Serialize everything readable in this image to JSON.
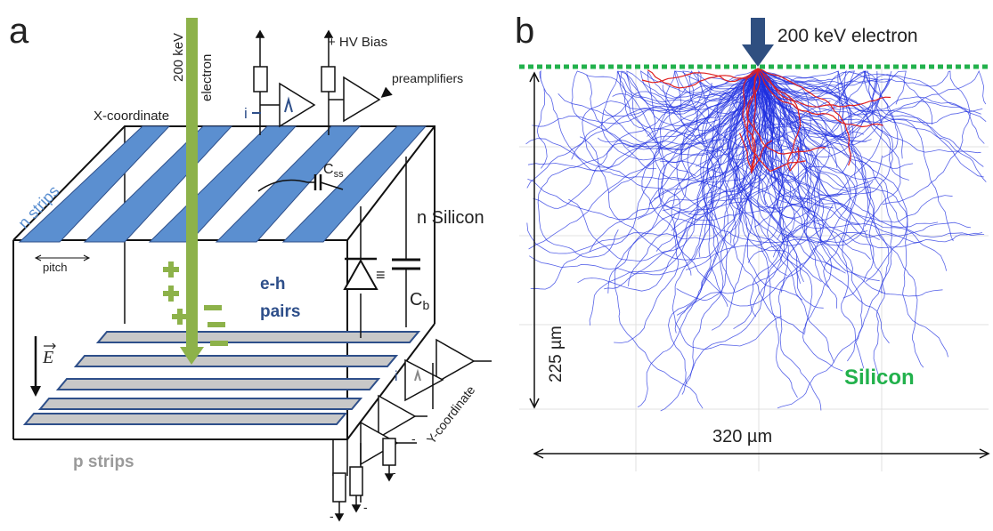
{
  "panel_a": {
    "letter": "a",
    "beam_label_line1": "200 keV",
    "beam_label_line2": "electron",
    "hv_bias": "+ HV Bias",
    "preamplifiers": "preamplifiers",
    "current_label": "i",
    "x_coordinate": "X-coordinate",
    "n_strips": "n strips",
    "css_label_main": "C",
    "css_label_sub": "ss",
    "n_silicon": "n Silicon",
    "pitch": "pitch",
    "eh_line1": "e-h",
    "eh_line2": "pairs",
    "cb_label_main": "C",
    "cb_label_sub": "b",
    "equiv": "≡",
    "efield": "E",
    "current_label_2": "i",
    "y_coordinate": "Y-coordinate",
    "p_strips": "p strips",
    "minus": "-",
    "colors": {
      "n_strip": "#5b8fd0",
      "p_strip": "#c8c8c8",
      "beam": "#8db24a",
      "text_blue": "#2e4f8a"
    }
  },
  "panel_b": {
    "letter": "b",
    "beam_label": "200 keV  electron",
    "depth_label": "225 µm",
    "width_label": "320 µm",
    "material_label": "Silicon",
    "colors": {
      "surface": "#22b14c",
      "tracks_primary": "#1f2fe0",
      "tracks_backscatter": "#e02020",
      "arrow": "#2f4f80"
    }
  }
}
